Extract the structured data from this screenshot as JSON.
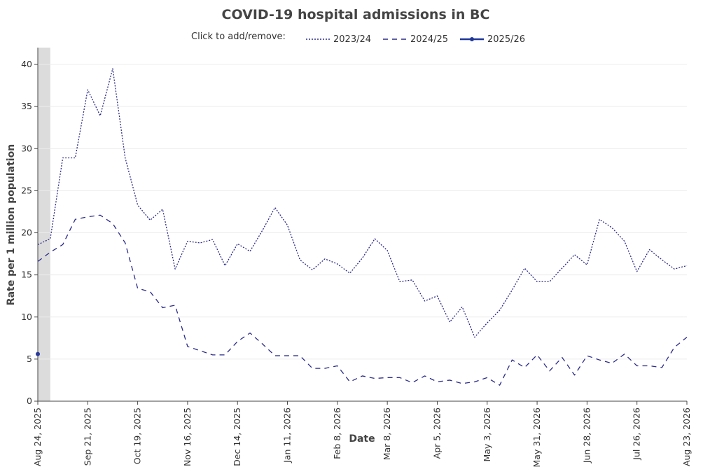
{
  "chart_data": {
    "type": "line",
    "title": "COVID-19 hospital admissions in BC",
    "xlabel": "Date",
    "ylabel": "Rate per 1 million population",
    "legend_prompt": "Click to add/remove:",
    "legend_position": "top",
    "grid": true,
    "ylim": [
      0,
      42
    ],
    "yticks": [
      0,
      5,
      10,
      15,
      20,
      25,
      30,
      35,
      40
    ],
    "xlim": [
      "2025-08-24",
      "2026-08-23"
    ],
    "xticks": [
      "2025-08-24",
      "2025-09-21",
      "2025-10-19",
      "2025-11-16",
      "2025-12-14",
      "2026-01-11",
      "2026-02-08",
      "2026-03-08",
      "2026-04-05",
      "2026-05-03",
      "2026-05-31",
      "2026-06-28",
      "2026-07-26",
      "2026-08-23"
    ],
    "xtick_labels": [
      "Aug 24, 2025",
      "Sep 21, 2025",
      "Oct 19, 2025",
      "Nov 16, 2025",
      "Dec 14, 2025",
      "Jan 11, 2026",
      "Feb 8, 2026",
      "Mar 8, 2026",
      "Apr 5, 2026",
      "May 3, 2026",
      "May 31, 2026",
      "Jun 28, 2026",
      "Jul 26, 2026",
      "Aug 23, 2026"
    ],
    "shaded_region": [
      "2025-08-24",
      "2025-08-31"
    ],
    "series": [
      {
        "name": "2023/24",
        "style": "dotted",
        "color": "#2b2b8a",
        "x": [
          "2025-08-24",
          "2025-08-31",
          "2025-09-07",
          "2025-09-14",
          "2025-09-21",
          "2025-09-28",
          "2025-10-05",
          "2025-10-12",
          "2025-10-19",
          "2025-10-26",
          "2025-11-02",
          "2025-11-09",
          "2025-11-16",
          "2025-11-23",
          "2025-11-30",
          "2025-12-07",
          "2025-12-14",
          "2025-12-21",
          "2025-12-28",
          "2026-01-04",
          "2026-01-11",
          "2026-01-18",
          "2026-01-25",
          "2026-02-01",
          "2026-02-08",
          "2026-02-15",
          "2026-02-22",
          "2026-03-01",
          "2026-03-08",
          "2026-03-15",
          "2026-03-22",
          "2026-03-29",
          "2026-04-05",
          "2026-04-12",
          "2026-04-19",
          "2026-04-26",
          "2026-05-03",
          "2026-05-10",
          "2026-05-17",
          "2026-05-24",
          "2026-05-31",
          "2026-06-07",
          "2026-06-14",
          "2026-06-21",
          "2026-06-28",
          "2026-07-05",
          "2026-07-12",
          "2026-07-19",
          "2026-07-26",
          "2026-08-02",
          "2026-08-09",
          "2026-08-16",
          "2026-08-23"
        ],
        "values": [
          18.6,
          19.3,
          28.9,
          28.9,
          37.0,
          33.9,
          39.5,
          28.9,
          23.3,
          21.5,
          22.8,
          15.7,
          19.0,
          18.8,
          19.2,
          16.1,
          18.7,
          17.8,
          20.3,
          23.0,
          20.9,
          16.8,
          15.6,
          16.9,
          16.3,
          15.2,
          17.0,
          19.3,
          17.9,
          14.2,
          14.4,
          11.9,
          12.5,
          9.4,
          11.2,
          7.6,
          9.3,
          10.8,
          13.2,
          15.8,
          14.2,
          14.2,
          15.8,
          17.4,
          16.2,
          21.6,
          20.6,
          19.0,
          15.4,
          18.0,
          16.8,
          15.7,
          16.1
        ]
      },
      {
        "name": "2024/25",
        "style": "dashed",
        "color": "#2b2b8a",
        "x": [
          "2025-08-24",
          "2025-08-31",
          "2025-09-07",
          "2025-09-14",
          "2025-09-21",
          "2025-09-28",
          "2025-10-05",
          "2025-10-12",
          "2025-10-19",
          "2025-10-26",
          "2025-11-02",
          "2025-11-09",
          "2025-11-16",
          "2025-11-23",
          "2025-11-30",
          "2025-12-07",
          "2025-12-14",
          "2025-12-21",
          "2025-12-28",
          "2026-01-04",
          "2026-01-11",
          "2026-01-18",
          "2026-01-25",
          "2026-02-01",
          "2026-02-08",
          "2026-02-15",
          "2026-02-22",
          "2026-03-01",
          "2026-03-08",
          "2026-03-15",
          "2026-03-22",
          "2026-03-29",
          "2026-04-05",
          "2026-04-12",
          "2026-04-19",
          "2026-04-26",
          "2026-05-03",
          "2026-05-10",
          "2026-05-17",
          "2026-05-24",
          "2026-05-31",
          "2026-06-07",
          "2026-06-14",
          "2026-06-21",
          "2026-06-28",
          "2026-07-05",
          "2026-07-12",
          "2026-07-19",
          "2026-07-26",
          "2026-08-02",
          "2026-08-09",
          "2026-08-16",
          "2026-08-23"
        ],
        "values": [
          16.6,
          17.7,
          18.6,
          21.6,
          21.9,
          22.1,
          21.1,
          18.8,
          13.4,
          13.0,
          11.1,
          11.4,
          6.5,
          6.0,
          5.5,
          5.5,
          7.1,
          8.1,
          6.8,
          5.4,
          5.4,
          5.4,
          3.9,
          3.9,
          4.2,
          2.3,
          3.0,
          2.7,
          2.8,
          2.8,
          2.2,
          3.0,
          2.3,
          2.5,
          2.1,
          2.3,
          2.8,
          1.9,
          4.9,
          4.0,
          5.5,
          3.6,
          5.2,
          3.1,
          5.4,
          4.9,
          4.5,
          5.6,
          4.2,
          4.2,
          4.0,
          6.4,
          7.6
        ]
      },
      {
        "name": "2025/26",
        "style": "solid-markers",
        "color": "#2a3a9a",
        "x": [
          "2025-08-24"
        ],
        "values": [
          5.6
        ]
      }
    ]
  }
}
